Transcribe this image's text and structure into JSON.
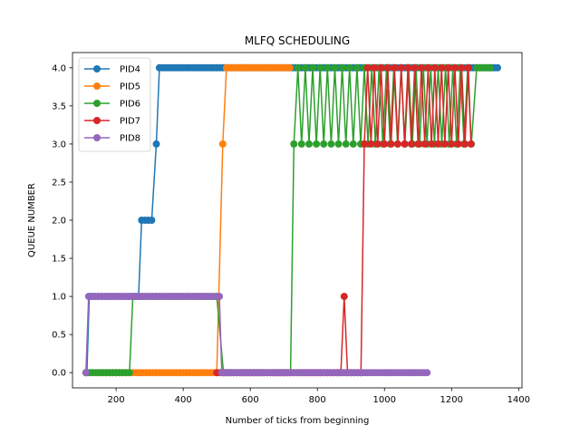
{
  "chart_data": {
    "type": "line",
    "title": "MLFQ SCHEDULING",
    "xlabel": "Number of ticks from beginning",
    "ylabel": "QUEUE NUMBER",
    "xlim": [
      70,
      1410
    ],
    "ylim": [
      -0.2,
      4.2
    ],
    "xticks": [
      200,
      400,
      600,
      800,
      1000,
      1200,
      1400
    ],
    "yticks": [
      0.0,
      0.5,
      1.0,
      1.5,
      2.0,
      2.5,
      3.0,
      3.5,
      4.0
    ],
    "grid": false,
    "legend_position": "top-left",
    "series": [
      {
        "name": "PID4",
        "color": "#1f77b4",
        "segments": [
          {
            "from": 113,
            "to": 113,
            "value": 0,
            "step": 10
          },
          {
            "from": 120,
            "to": 120,
            "value": 1,
            "step": 10
          },
          {
            "from": 127,
            "to": 267,
            "value": 1,
            "step": 10
          },
          {
            "from": 276,
            "to": 310,
            "value": 2,
            "step": 10
          },
          {
            "from": 320,
            "to": 320,
            "value": 3,
            "step": 10
          },
          {
            "from": 329,
            "to": 1340,
            "value": 4,
            "step": 9
          }
        ]
      },
      {
        "name": "PID5",
        "color": "#ff7f0e",
        "segments": [
          {
            "from": 150,
            "to": 500,
            "value": 0,
            "step": 10
          },
          {
            "from": 518,
            "to": 518,
            "value": 3,
            "step": 10
          },
          {
            "from": 529,
            "to": 720,
            "value": 4,
            "step": 9
          }
        ]
      },
      {
        "name": "PID6",
        "color": "#2ca02c",
        "segments": [
          {
            "from": 110,
            "to": 240,
            "value": 0,
            "step": 10
          },
          {
            "from": 250,
            "to": 500,
            "value": 1,
            "step": 10
          },
          {
            "from": 520,
            "to": 720,
            "value": 0,
            "step": 10
          },
          {
            "from": 730,
            "to": 730,
            "value": 3,
            "step": 10
          },
          {
            "from": 742,
            "to": 1262,
            "value": "alt43",
            "step": 11
          },
          {
            "from": 1275,
            "to": 1320,
            "value": 4,
            "step": 10
          }
        ]
      },
      {
        "name": "PID7",
        "color": "#d62728",
        "segments": [
          {
            "from": 500,
            "to": 870,
            "value": 0,
            "step": 10
          },
          {
            "from": 880,
            "to": 880,
            "value": 1,
            "step": 10
          },
          {
            "from": 890,
            "to": 930,
            "value": 0,
            "step": 10
          },
          {
            "from": 940,
            "to": 940,
            "value": 3,
            "step": 10
          },
          {
            "from": 950,
            "to": 1250,
            "value": "alt43",
            "step": 10
          },
          {
            "from": 1258,
            "to": 1258,
            "value": 3,
            "step": 10
          }
        ]
      },
      {
        "name": "PID8",
        "color": "#9467bd",
        "segments": [
          {
            "from": 110,
            "to": 110,
            "value": 0,
            "step": 10
          },
          {
            "from": 118,
            "to": 508,
            "value": 1,
            "step": 10
          },
          {
            "from": 515,
            "to": 1130,
            "value": 0,
            "step": 9
          }
        ]
      }
    ]
  }
}
